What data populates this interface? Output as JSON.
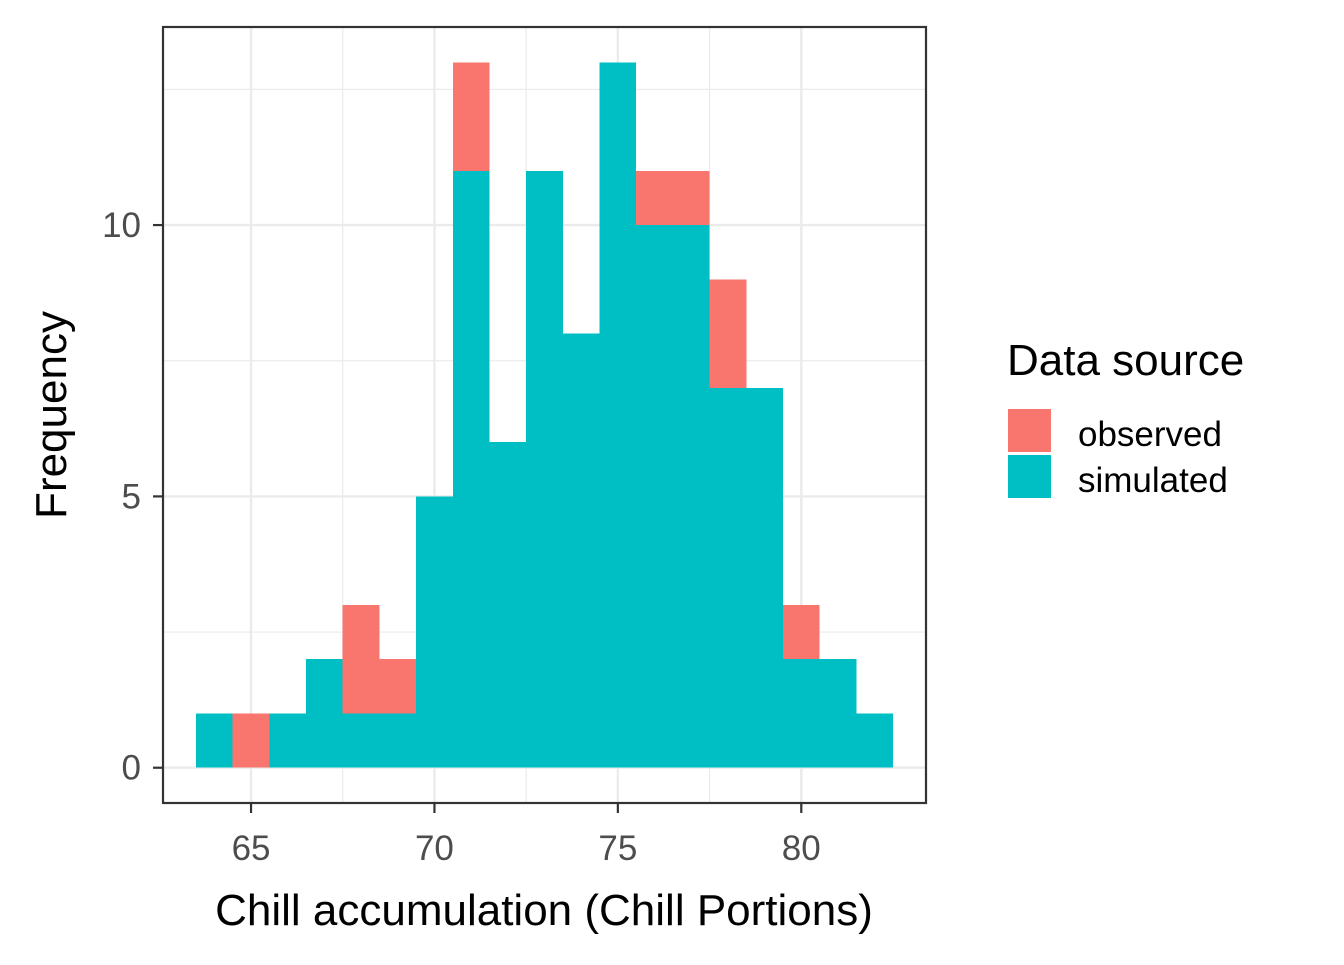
{
  "chart_data": {
    "type": "bar",
    "subtype": "stacked-histogram",
    "xlabel": "Chill accumulation (Chill Portions)",
    "ylabel": "Frequency",
    "xlim": [
      62.6,
      83.4
    ],
    "ylim": [
      -0.65,
      13.65
    ],
    "x_ticks": [
      65,
      70,
      75,
      80
    ],
    "y_ticks": [
      0,
      5,
      10
    ],
    "x_tick_labels": [
      "65",
      "70",
      "75",
      "80"
    ],
    "y_tick_labels": [
      "0",
      "5",
      "10"
    ],
    "grid": true,
    "legend": {
      "title": "Data source",
      "position": "right",
      "entries": [
        "observed",
        "simulated"
      ]
    },
    "bin_width": 1,
    "bin_centers": [
      64,
      65,
      66,
      67,
      68,
      69,
      70,
      71,
      72,
      73,
      74,
      75,
      76,
      77,
      78,
      79,
      80,
      81,
      82
    ],
    "series": [
      {
        "name": "simulated",
        "color": "#00BFC4",
        "values": [
          1,
          0,
          1,
          2,
          1,
          1,
          5,
          11,
          6,
          11,
          8,
          13,
          10,
          10,
          7,
          7,
          2,
          2,
          1
        ]
      },
      {
        "name": "observed",
        "color": "#F8766D",
        "values": [
          0,
          1,
          0,
          0,
          2,
          1,
          0,
          2,
          0,
          0,
          0,
          0,
          1,
          1,
          2,
          0,
          1,
          0,
          0
        ]
      }
    ]
  }
}
